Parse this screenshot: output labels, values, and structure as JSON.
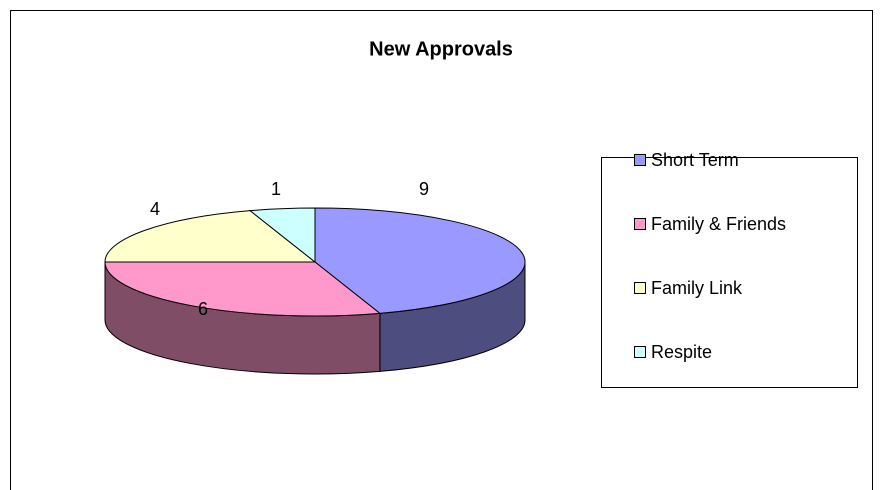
{
  "chart_data": {
    "type": "pie",
    "title": "New Approvals",
    "categories": [
      "Short Term",
      "Family & Friends",
      "Family Link",
      "Respite"
    ],
    "values": [
      9,
      6,
      4,
      1
    ],
    "colors": [
      "#9999ff",
      "#ff99cc",
      "#ffffcc",
      "#ccffff"
    ],
    "legend": "right"
  }
}
